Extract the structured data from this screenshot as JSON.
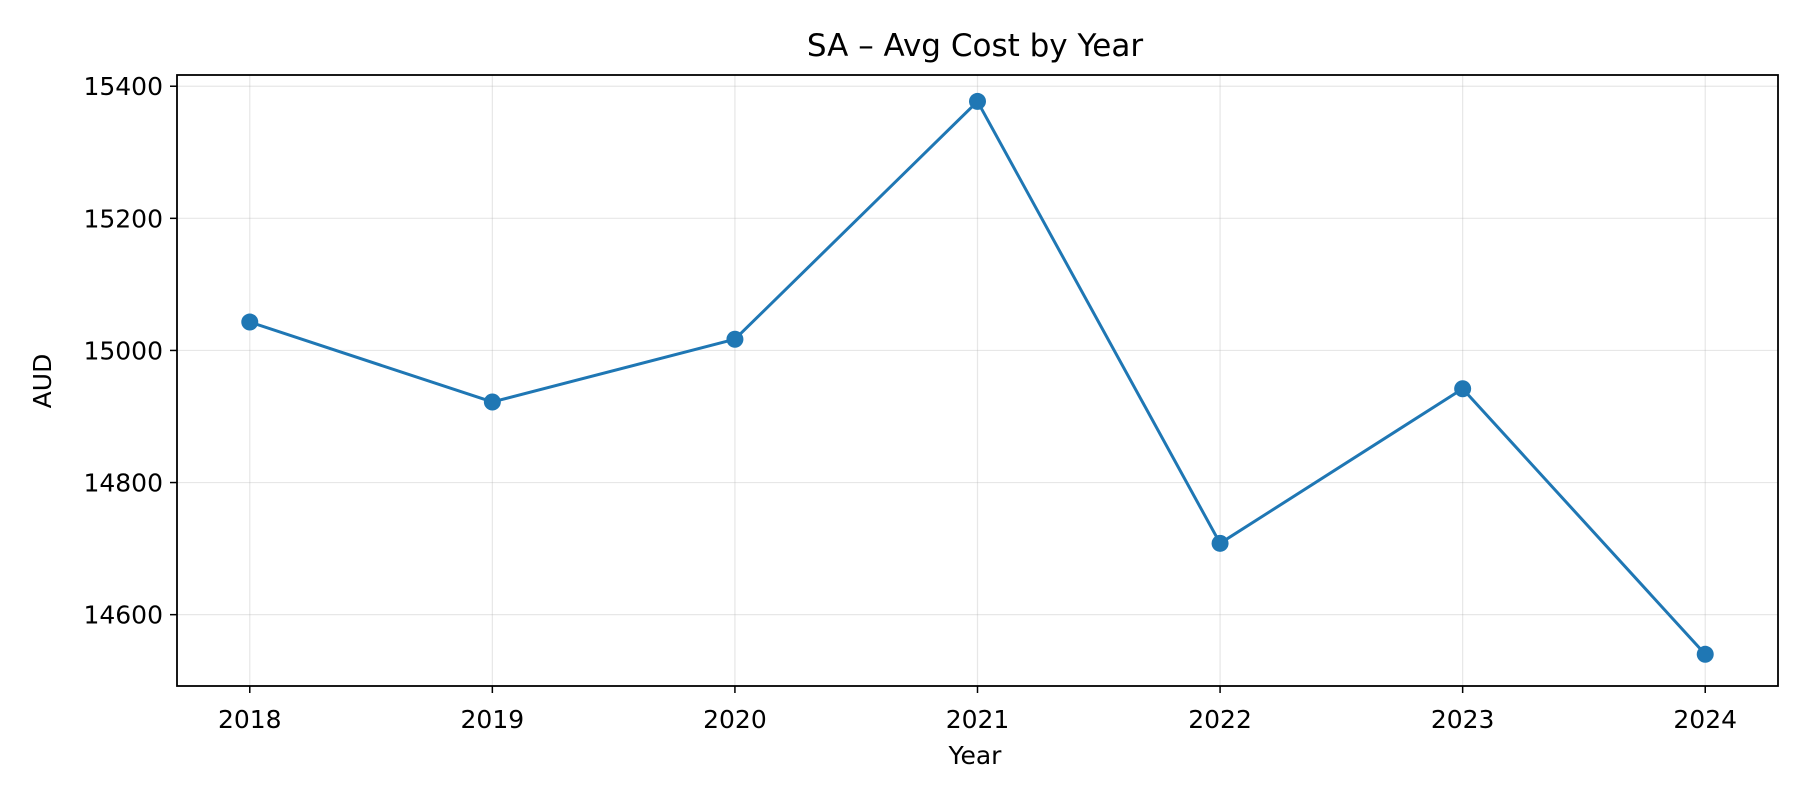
{
  "chart_data": {
    "type": "line",
    "title": "SA – Avg Cost by Year",
    "xlabel": "Year",
    "ylabel": "AUD",
    "x": [
      2018,
      2019,
      2020,
      2021,
      2022,
      2023,
      2024
    ],
    "series": [
      {
        "values": [
          15043,
          14922,
          15017,
          15377,
          14708,
          14942,
          14540
        ],
        "color": "#1f77b4"
      }
    ],
    "x_ticks": [
      "2018",
      "2019",
      "2020",
      "2021",
      "2022",
      "2023",
      "2024"
    ],
    "y_ticks": [
      14600,
      14800,
      15000,
      15200,
      15400
    ],
    "y_tick_labels": [
      "14600",
      "14800",
      "15000",
      "15200",
      "15400"
    ],
    "xlim": [
      2017.7,
      2024.3
    ],
    "ylim": [
      14492,
      15417
    ],
    "grid": true,
    "marker": "circle"
  }
}
